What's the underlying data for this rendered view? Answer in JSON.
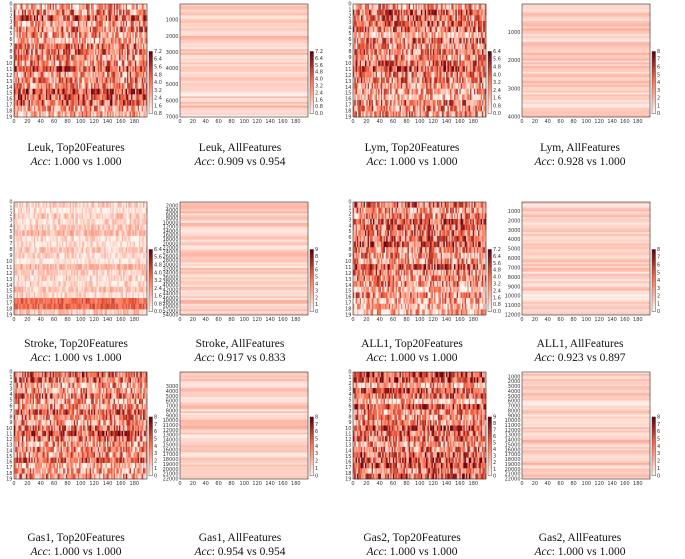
{
  "colormap": {
    "low": "#fff5f0",
    "mid": "#fb6a4a",
    "high": "#67000d"
  },
  "chart_data": [
    {
      "type": "heatmap",
      "panel": "Leuk, Top20Features",
      "title": "Leuk, Top20Features",
      "acc_label": "Acc",
      "acc_value": ": 1.000 vs 1.000",
      "rows": 20,
      "cols": 200,
      "ylim": [
        0,
        19
      ],
      "xlim": [
        0,
        199
      ],
      "xticks": [
        0,
        20,
        40,
        60,
        80,
        100,
        120,
        140,
        160,
        180
      ],
      "yticks": [
        0,
        1,
        2,
        3,
        4,
        5,
        6,
        7,
        8,
        9,
        10,
        11,
        12,
        13,
        14,
        15,
        16,
        17,
        18,
        19
      ],
      "colorbar_ticks": [
        "0.8",
        "1.6",
        "2.4",
        "3.2",
        "4.0",
        "4.8",
        "5.6",
        "6.4",
        "7.2"
      ],
      "intensity": "dense"
    },
    {
      "type": "heatmap",
      "panel": "Leuk, AllFeatures",
      "title": "Leuk, AllFeatures",
      "acc_label": "Acc",
      "acc_value": ": 0.909 vs 0.954",
      "rows": 7000,
      "cols": 200,
      "ylim": [
        0,
        7000
      ],
      "xlim": [
        0,
        199
      ],
      "xticks": [
        0,
        20,
        40,
        60,
        80,
        100,
        120,
        140,
        160,
        180
      ],
      "yticks": [
        1000,
        2000,
        3000,
        4000,
        5000,
        6000,
        7000
      ],
      "colorbar_ticks": [
        "0.0",
        "0.8",
        "1.6",
        "2.4",
        "3.2",
        "4.0",
        "4.8",
        "5.6",
        "6.4",
        "7.2"
      ],
      "intensity": "faint"
    },
    {
      "type": "heatmap",
      "panel": "Lym, Top20Features",
      "title": "Lym, Top20Features",
      "acc_label": "Acc",
      "acc_value": ": 1.000 vs 1.000",
      "rows": 20,
      "cols": 200,
      "ylim": [
        0,
        19
      ],
      "xlim": [
        0,
        199
      ],
      "xticks": [
        0,
        20,
        40,
        60,
        80,
        100,
        120,
        140,
        160,
        180
      ],
      "yticks": [
        0,
        1,
        2,
        3,
        4,
        5,
        6,
        7,
        8,
        9,
        10,
        11,
        12,
        13,
        14,
        15,
        16,
        17,
        18,
        19
      ],
      "colorbar_ticks": [
        "0.0",
        "0.8",
        "1.6",
        "2.4",
        "3.2",
        "4.0",
        "4.8",
        "5.6",
        "6.4"
      ],
      "intensity": "dense"
    },
    {
      "type": "heatmap",
      "panel": "Lym, AllFeatures",
      "title": "Lym, AllFeatures",
      "acc_label": "Acc",
      "acc_value": ": 0.928 vs 1.000",
      "rows": 4000,
      "cols": 200,
      "ylim": [
        0,
        4000
      ],
      "xlim": [
        0,
        199
      ],
      "xticks": [
        0,
        20,
        40,
        60,
        80,
        100,
        120,
        140,
        160,
        180
      ],
      "yticks": [
        1000,
        2000,
        3000,
        4000
      ],
      "colorbar_ticks": [
        "0",
        "1",
        "2",
        "3",
        "4",
        "5",
        "6",
        "7",
        "8"
      ],
      "intensity": "faint"
    },
    {
      "type": "heatmap",
      "panel": "Stroke, Top20Features",
      "title": "Stroke, Top20Features",
      "acc_label": "Acc",
      "acc_value": ": 1.000 vs 1.000",
      "rows": 20,
      "cols": 200,
      "ylim": [
        0,
        19
      ],
      "xlim": [
        0,
        199
      ],
      "xticks": [
        0,
        20,
        40,
        60,
        80,
        100,
        120,
        140,
        160,
        180
      ],
      "yticks": [
        0,
        1,
        2,
        3,
        4,
        5,
        6,
        7,
        8,
        9,
        10,
        11,
        12,
        13,
        14,
        15,
        16,
        17,
        18,
        19
      ],
      "colorbar_ticks": [
        "0.0",
        "0.8",
        "1.6",
        "2.4",
        "3.2",
        "4.0",
        "4.8",
        "5.6",
        "6.4"
      ],
      "intensity": "light"
    },
    {
      "type": "heatmap",
      "panel": "Stroke, AllFeatures",
      "title": "Stroke, AllFeatures",
      "acc_label": "Acc",
      "acc_value": ": 0.917 vs 0.833",
      "rows": 54000,
      "cols": 200,
      "ylim": [
        0,
        54000
      ],
      "xlim": [
        0,
        199
      ],
      "xticks": [
        0,
        20,
        40,
        60,
        80,
        100,
        120,
        140,
        160,
        180
      ],
      "yticks": [
        2000,
        4000,
        6000,
        8000,
        10000,
        12000,
        14000,
        16000,
        18000,
        20000,
        22000,
        24000,
        26000,
        28000,
        30000,
        32000,
        34000,
        36000,
        38000,
        40000,
        42000,
        44000,
        46000,
        48000,
        50000,
        52000,
        54000
      ],
      "colorbar_ticks": [
        "0",
        "1",
        "2",
        "3",
        "4",
        "5",
        "6",
        "7",
        "8",
        "9"
      ],
      "intensity": "faint"
    },
    {
      "type": "heatmap",
      "panel": "ALL1, Top20Features",
      "title": "ALL1, Top20Features",
      "acc_label": "Acc",
      "acc_value": ": 1.000 vs 1.000",
      "rows": 20,
      "cols": 200,
      "ylim": [
        0,
        19
      ],
      "xlim": [
        0,
        199
      ],
      "xticks": [
        0,
        20,
        40,
        60,
        80,
        100,
        120,
        140,
        160,
        180
      ],
      "yticks": [
        0,
        1,
        2,
        3,
        4,
        5,
        6,
        7,
        8,
        9,
        10,
        11,
        12,
        13,
        14,
        15,
        16,
        17,
        18,
        19
      ],
      "colorbar_ticks": [
        "0.0",
        "0.8",
        "1.6",
        "2.4",
        "3.2",
        "4.0",
        "4.8",
        "5.6",
        "6.4",
        "7.2"
      ],
      "intensity": "dense"
    },
    {
      "type": "heatmap",
      "panel": "ALL1, AllFeatures",
      "title": "ALL1, AllFeatures",
      "acc_label": "Acc",
      "acc_value": ": 0.923 vs 0.897",
      "rows": 12000,
      "cols": 200,
      "ylim": [
        0,
        12000
      ],
      "xlim": [
        0,
        199
      ],
      "xticks": [
        0,
        20,
        40,
        60,
        80,
        100,
        120,
        140,
        160,
        180
      ],
      "yticks": [
        1000,
        2000,
        3000,
        4000,
        5000,
        6000,
        7000,
        8000,
        9000,
        10000,
        11000,
        12000
      ],
      "colorbar_ticks": [
        "0",
        "1",
        "2",
        "3",
        "4",
        "5",
        "6",
        "7",
        "8"
      ],
      "intensity": "faint"
    },
    {
      "type": "heatmap",
      "panel": "Gas1, Top20Features",
      "title": "Gas1, Top20Features",
      "acc_label": "Acc",
      "acc_value": ": 1.000 vs 1.000",
      "rows": 20,
      "cols": 200,
      "ylim": [
        0,
        19
      ],
      "xlim": [
        0,
        199
      ],
      "xticks": [
        0,
        20,
        40,
        60,
        80,
        100,
        120,
        140,
        160,
        180
      ],
      "yticks": [
        0,
        1,
        2,
        3,
        4,
        5,
        6,
        7,
        8,
        9,
        10,
        11,
        12,
        13,
        14,
        15,
        16,
        17,
        18,
        19
      ],
      "colorbar_ticks": [
        "0",
        "1",
        "2",
        "3",
        "4",
        "5",
        "6",
        "7",
        "8"
      ],
      "intensity": "dense"
    },
    {
      "type": "heatmap",
      "panel": "Gas1, AllFeatures",
      "title": "Gas1, AllFeatures",
      "acc_label": "Acc",
      "acc_value": ": 0.954 vs 0.954",
      "rows": 22000,
      "cols": 200,
      "ylim": [
        0,
        22000
      ],
      "xlim": [
        0,
        199
      ],
      "xticks": [
        0,
        20,
        40,
        60,
        80,
        100,
        120,
        140,
        160,
        180
      ],
      "yticks": [
        3000,
        4000,
        5000,
        6000,
        7000,
        8000,
        9000,
        10000,
        11000,
        12000,
        13000,
        14000,
        15000,
        16000,
        17000,
        18000,
        19000,
        20000,
        21000,
        22000
      ],
      "colorbar_ticks": [
        "0",
        "1",
        "2",
        "3",
        "4",
        "5",
        "6",
        "7",
        "8"
      ],
      "intensity": "faint"
    },
    {
      "type": "heatmap",
      "panel": "Gas2, Top20Features",
      "title": "Gas2, Top20Features",
      "acc_label": "Acc",
      "acc_value": ": 1.000 vs 1.000",
      "rows": 20,
      "cols": 200,
      "ylim": [
        0,
        19
      ],
      "xlim": [
        0,
        199
      ],
      "xticks": [
        0,
        20,
        40,
        60,
        80,
        100,
        120,
        140,
        160,
        180
      ],
      "yticks": [
        0,
        1,
        2,
        3,
        4,
        5,
        6,
        7,
        8,
        9,
        10,
        11,
        12,
        13,
        14,
        15,
        16,
        17,
        18,
        19
      ],
      "colorbar_ticks": [
        "0",
        "1",
        "2",
        "3",
        "4",
        "5",
        "6",
        "7",
        "8",
        "9"
      ],
      "intensity": "dense"
    },
    {
      "type": "heatmap",
      "panel": "Gas2, AllFeatures",
      "title": "Gas2, AllFeatures",
      "acc_label": "Acc",
      "acc_value": ": 1.000 vs 1.000",
      "rows": 22000,
      "cols": 200,
      "ylim": [
        0,
        22000
      ],
      "xlim": [
        0,
        199
      ],
      "xticks": [
        0,
        20,
        40,
        60,
        80,
        100,
        120,
        140,
        160,
        180
      ],
      "yticks": [
        1000,
        2000,
        3000,
        4000,
        5000,
        6000,
        7000,
        8000,
        9000,
        10000,
        11000,
        12000,
        13000,
        14000,
        15000,
        16000,
        17000,
        18000,
        19000,
        20000,
        21000,
        22000
      ],
      "colorbar_ticks": [
        "0",
        "1",
        "2",
        "3",
        "4",
        "5",
        "6",
        "7",
        "8"
      ],
      "intensity": "faint"
    }
  ]
}
